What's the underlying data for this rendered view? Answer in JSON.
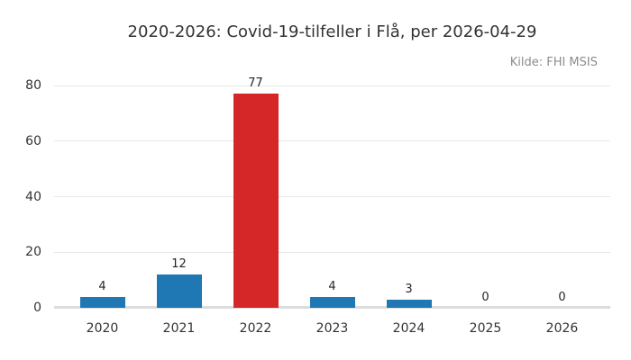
{
  "title": "2020-2026: Covid-19-tilfeller i Flå, per 2026-04-29",
  "source": "Kilde: FHI MSIS",
  "colors": {
    "background": "#ffffff",
    "bar_default": "#1f77b4",
    "bar_highlight": "#d62728",
    "gridline": "#e8e8e8",
    "axis_line": "#dcdcdc",
    "text": "#333333",
    "value_label_text": "#262626",
    "muted_text": "#8c8c8c"
  },
  "chart_data": {
    "type": "bar",
    "title": "2020-2026: Covid-19-tilfeller i Flå, per 2026-04-29",
    "subtitle": "Kilde: FHI MSIS",
    "categories": [
      "2020",
      "2021",
      "2022",
      "2023",
      "2024",
      "2025",
      "2026"
    ],
    "values": [
      4,
      12,
      77,
      4,
      3,
      0,
      0
    ],
    "bar_colors": [
      "#1f77b4",
      "#1f77b4",
      "#d62728",
      "#1f77b4",
      "#1f77b4",
      "#1f77b4",
      "#1f77b4"
    ],
    "highlight_index": 2,
    "xlabel": "",
    "ylabel": "",
    "ylim": [
      0,
      80
    ],
    "yticks": [
      0,
      20,
      40,
      60,
      80
    ],
    "grid": "horizontal",
    "legend": "none",
    "data_labels": true
  }
}
